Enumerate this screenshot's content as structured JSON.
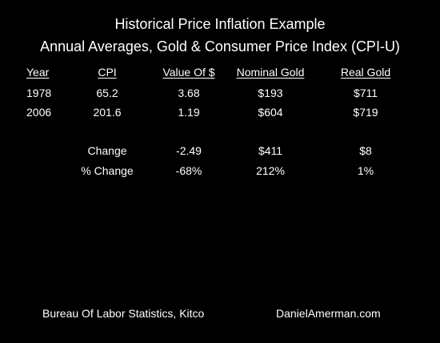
{
  "title_line1": "Historical Price Inflation Example",
  "title_line2": "Annual Averages, Gold & Consumer Price Index (CPI-U)",
  "headers": {
    "year": "Year",
    "cpi": "CPI",
    "value": "Value Of $",
    "nominal": "Nominal Gold",
    "real": "Real Gold"
  },
  "rows": [
    {
      "year": "1978",
      "cpi": "65.2",
      "value": "3.68",
      "nominal": "$193",
      "real": "$711"
    },
    {
      "year": "2006",
      "cpi": "201.6",
      "value": "1.19",
      "nominal": "$604",
      "real": "$719"
    }
  ],
  "change": {
    "label": "Change",
    "value": "-2.49",
    "nominal": "$411",
    "real": "$8"
  },
  "pct_change": {
    "label": "% Change",
    "value": "-68%",
    "nominal": "212%",
    "real": "1%"
  },
  "footer_left": "Bureau Of Labor Statistics, Kitco",
  "footer_right": "DanielAmerman.com",
  "colors": {
    "background": "#000000",
    "text": "#ffffff"
  }
}
